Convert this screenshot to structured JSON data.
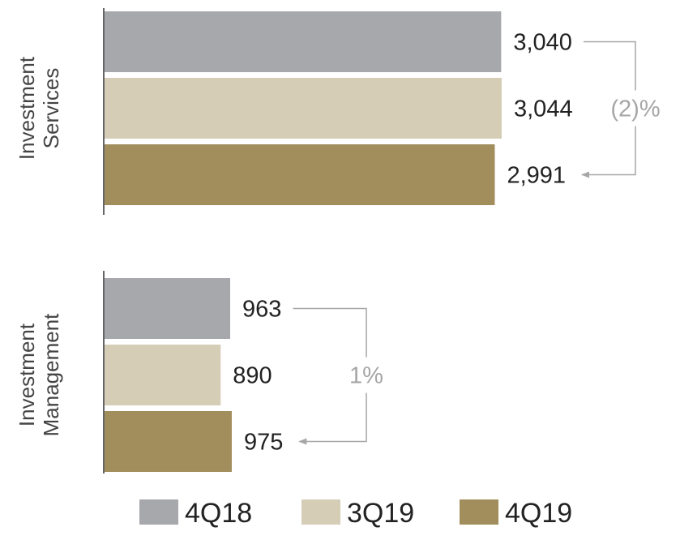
{
  "chart_data": {
    "type": "bar",
    "orientation": "horizontal",
    "series": [
      {
        "name": "4Q18",
        "color": "#a7a8ab"
      },
      {
        "name": "3Q19",
        "color": "#d6cdb6"
      },
      {
        "name": "4Q19",
        "color": "#a28d5c"
      }
    ],
    "groups": [
      {
        "label_lines": [
          "Investment",
          "Services"
        ],
        "values": [
          3040,
          3044,
          2991
        ],
        "value_labels": [
          "3,040",
          "3,044",
          "2,991"
        ],
        "change_label": "(2)%"
      },
      {
        "label_lines": [
          "Investment",
          "Management"
        ],
        "values": [
          963,
          890,
          975
        ],
        "value_labels": [
          "963",
          "890",
          "975"
        ],
        "change_label": "1%"
      }
    ],
    "xlim": [
      0,
      3500
    ],
    "grid": false,
    "legend_position": "bottom"
  }
}
